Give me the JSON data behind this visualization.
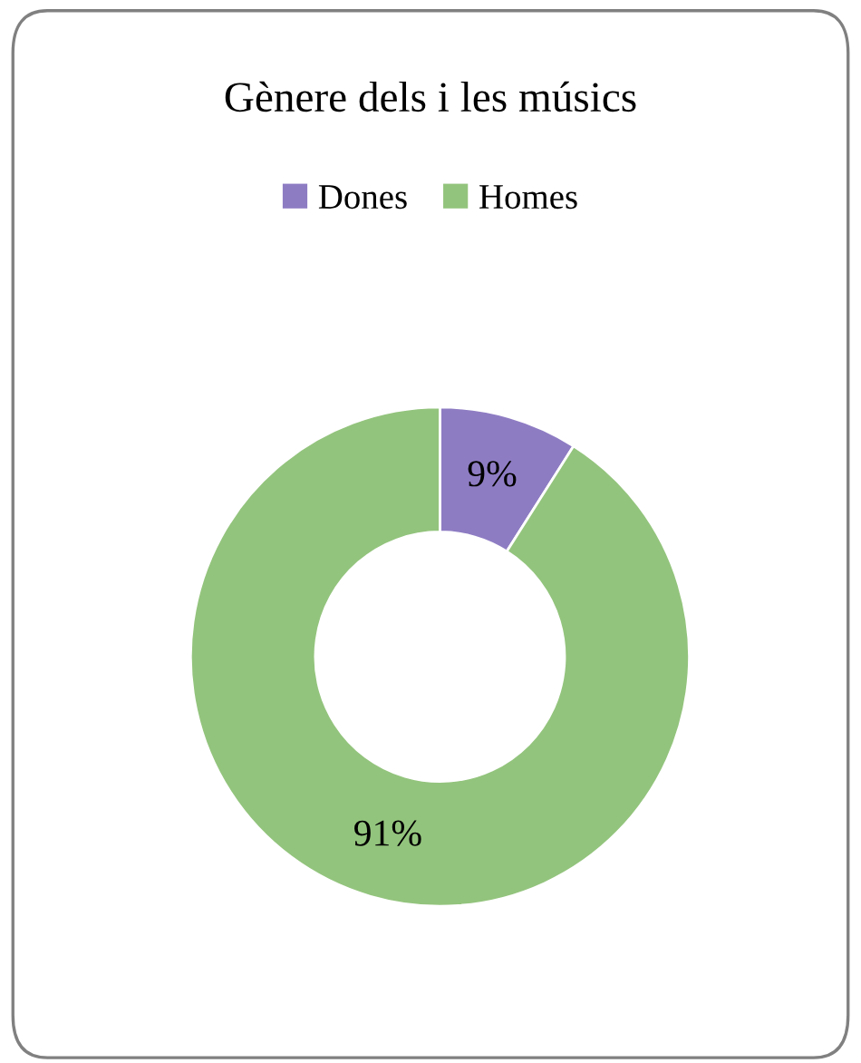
{
  "chart_data": {
    "type": "donut",
    "title": "Gènere dels i les músics",
    "categories": [
      "Dones",
      "Homes"
    ],
    "values": [
      9,
      91
    ],
    "colors": [
      "#8e7cc3",
      "#93c47d"
    ],
    "value_labels": [
      "9%",
      "91%"
    ],
    "legend": "top"
  }
}
